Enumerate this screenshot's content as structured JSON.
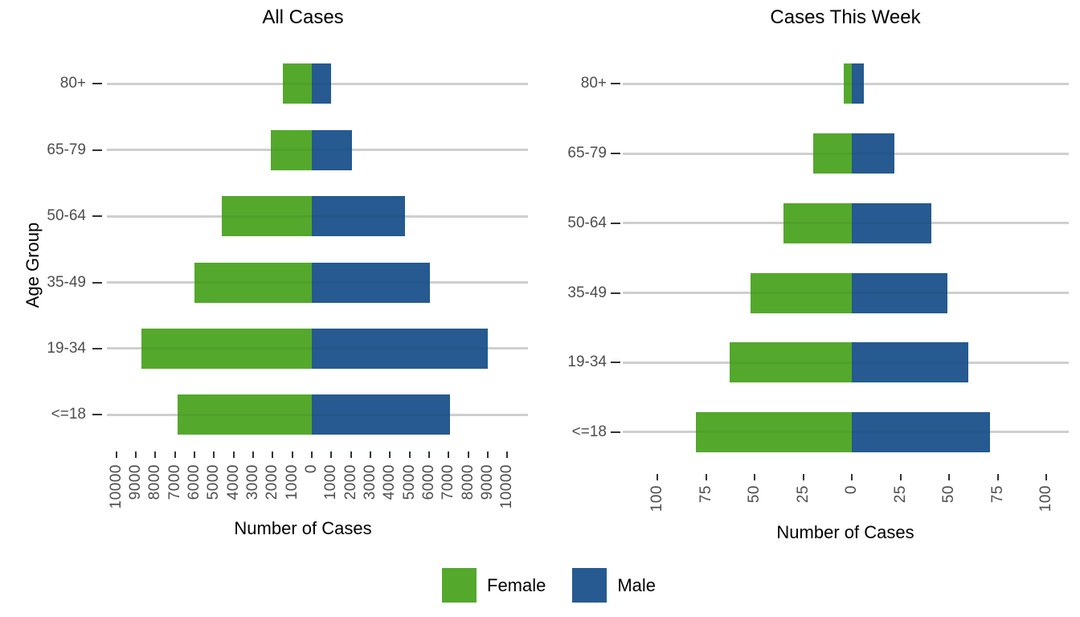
{
  "y_axis_title": "Age Group",
  "colors": {
    "female": "#54a82c",
    "male": "#265a90",
    "gridline": "#d9d9d9",
    "tick_mark": "#333333",
    "axis_text": "#4d4d4d",
    "title_text": "#000000"
  },
  "legend": {
    "position": "bottom",
    "items": [
      {
        "label": "Female",
        "color": "#54a82c"
      },
      {
        "label": "Male",
        "color": "#265a90"
      }
    ]
  },
  "chart_data": [
    {
      "type": "bar",
      "subtype": "population-pyramid",
      "orientation": "horizontal-diverging",
      "title": "All Cases",
      "xlabel": "Number of Cases",
      "ylabel": "Age Group",
      "categories": [
        "80+",
        "65-79",
        "50-64",
        "35-49",
        "19-34",
        "<=18"
      ],
      "series": [
        {
          "name": "Female",
          "side": "left",
          "color": "#54a82c",
          "values": [
            1500,
            2100,
            4600,
            6000,
            8700,
            6850
          ]
        },
        {
          "name": "Male",
          "side": "right",
          "color": "#265a90",
          "values": [
            1000,
            2050,
            4750,
            6050,
            9000,
            7050
          ]
        }
      ],
      "xlim": [
        -10000,
        10000
      ],
      "xtick_step": 1000,
      "xtick_labels": [
        "10000",
        "9000",
        "8000",
        "7000",
        "6000",
        "5000",
        "4000",
        "3000",
        "2000",
        "1000",
        "0",
        "1000",
        "2000",
        "3000",
        "4000",
        "5000",
        "6000",
        "7000",
        "8000",
        "9000",
        "10000"
      ],
      "xtick_label_angle": 90,
      "grid": "horizontal-major-only",
      "background": "white"
    },
    {
      "type": "bar",
      "subtype": "population-pyramid",
      "orientation": "horizontal-diverging",
      "title": "Cases This Week",
      "xlabel": "Number of Cases",
      "ylabel": "Age Group",
      "categories": [
        "80+",
        "65-79",
        "50-64",
        "35-49",
        "19-34",
        "<=18"
      ],
      "series": [
        {
          "name": "Female",
          "side": "left",
          "color": "#54a82c",
          "values": [
            4,
            20,
            35,
            52,
            63,
            80
          ]
        },
        {
          "name": "Male",
          "side": "right",
          "color": "#265a90",
          "values": [
            6,
            22,
            41,
            49,
            60,
            71
          ]
        }
      ],
      "xlim": [
        -100,
        100
      ],
      "xtick_step": 25,
      "xtick_labels": [
        "100",
        "75",
        "50",
        "25",
        "0",
        "25",
        "50",
        "75",
        "100"
      ],
      "xtick_label_angle": 90,
      "grid": "horizontal-major-only",
      "background": "white"
    }
  ]
}
